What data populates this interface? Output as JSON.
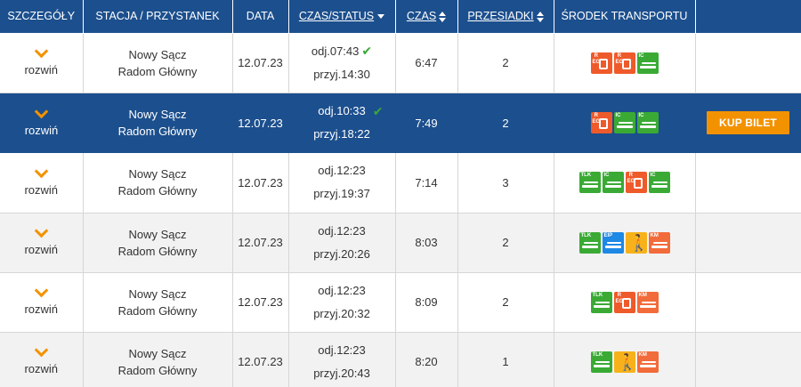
{
  "header": {
    "details": "SZCZEGÓŁY",
    "station": "STACJA / PRZYSTANEK",
    "date": "DATA",
    "time_status": "CZAS/STATUS",
    "duration": "CZAS",
    "transfers": "PRZESIADKI",
    "transport": "ŚRODEK TRANSPORTU"
  },
  "colors": {
    "header_bg": "#1c4f8d",
    "accent": "#f39200",
    "ok": "#3aaa35"
  },
  "rows": [
    {
      "expand": "rozwiń",
      "from": "Nowy Sącz",
      "to": "Radom Główny",
      "date": "12.07.23",
      "dep": "odj.07:43",
      "arr": "przyj.14:30",
      "check": "✔",
      "duration": "6:47",
      "transfers": "2",
      "carriers": [
        {
          "type": "kr",
          "label": "R\nEG",
          "icon": "bus-icon"
        },
        {
          "type": "kr",
          "label": "R\nEG",
          "icon": "bus-icon"
        },
        {
          "type": "ic",
          "label": "IC",
          "icon": "train-icon"
        }
      ]
    },
    {
      "expand": "rozwiń",
      "from": "Nowy Sącz",
      "to": "Radom Główny",
      "date": "12.07.23",
      "dep": "odj.10:33",
      "arr": "przyj.18:22",
      "check": "✔",
      "duration": "7:49",
      "transfers": "2",
      "buy": "KUP BILET",
      "carriers": [
        {
          "type": "kr",
          "label": "R\nEG",
          "icon": "bus-icon"
        },
        {
          "type": "ic",
          "label": "IC",
          "icon": "train-icon"
        },
        {
          "type": "ic",
          "label": "IC",
          "icon": "train-icon"
        }
      ]
    },
    {
      "expand": "rozwiń",
      "from": "Nowy Sącz",
      "to": "Radom Główny",
      "date": "12.07.23",
      "dep": "odj.12:23",
      "arr": "przyj.19:37",
      "check": "",
      "duration": "7:14",
      "transfers": "3",
      "carriers": [
        {
          "type": "tlk",
          "label": "TLK",
          "icon": "train-icon"
        },
        {
          "type": "ic",
          "label": "IC",
          "icon": "train-icon"
        },
        {
          "type": "kr",
          "label": "R\nEG",
          "icon": "bus-icon"
        },
        {
          "type": "ic",
          "label": "IC",
          "icon": "train-icon"
        }
      ]
    },
    {
      "expand": "rozwiń",
      "from": "Nowy Sącz",
      "to": "Radom Główny",
      "date": "12.07.23",
      "dep": "odj.12:23",
      "arr": "przyj.20:26",
      "check": "",
      "duration": "8:03",
      "transfers": "2",
      "carriers": [
        {
          "type": "tlk",
          "label": "TLK",
          "icon": "train-icon"
        },
        {
          "type": "eip",
          "label": "EIP",
          "icon": "train-icon"
        },
        {
          "type": "walk",
          "label": "",
          "icon": "walk-icon"
        },
        {
          "type": "km",
          "label": "KM",
          "icon": "train-icon"
        }
      ]
    },
    {
      "expand": "rozwiń",
      "from": "Nowy Sącz",
      "to": "Radom Główny",
      "date": "12.07.23",
      "dep": "odj.12:23",
      "arr": "przyj.20:32",
      "check": "",
      "duration": "8:09",
      "transfers": "2",
      "carriers": [
        {
          "type": "tlk",
          "label": "TLK",
          "icon": "train-icon"
        },
        {
          "type": "kr",
          "label": "R\nEG",
          "icon": "bus-icon"
        },
        {
          "type": "km",
          "label": "KM",
          "icon": "train-icon"
        }
      ]
    },
    {
      "expand": "rozwiń",
      "from": "Nowy Sącz",
      "to": "Radom Główny",
      "date": "12.07.23",
      "dep": "odj.12:23",
      "arr": "przyj.20:43",
      "check": "",
      "duration": "8:20",
      "transfers": "1",
      "carriers": [
        {
          "type": "tlk",
          "label": "TLK",
          "icon": "train-icon"
        },
        {
          "type": "walk",
          "label": "",
          "icon": "walk-icon"
        },
        {
          "type": "km",
          "label": "KM",
          "icon": "train-icon"
        }
      ]
    }
  ]
}
